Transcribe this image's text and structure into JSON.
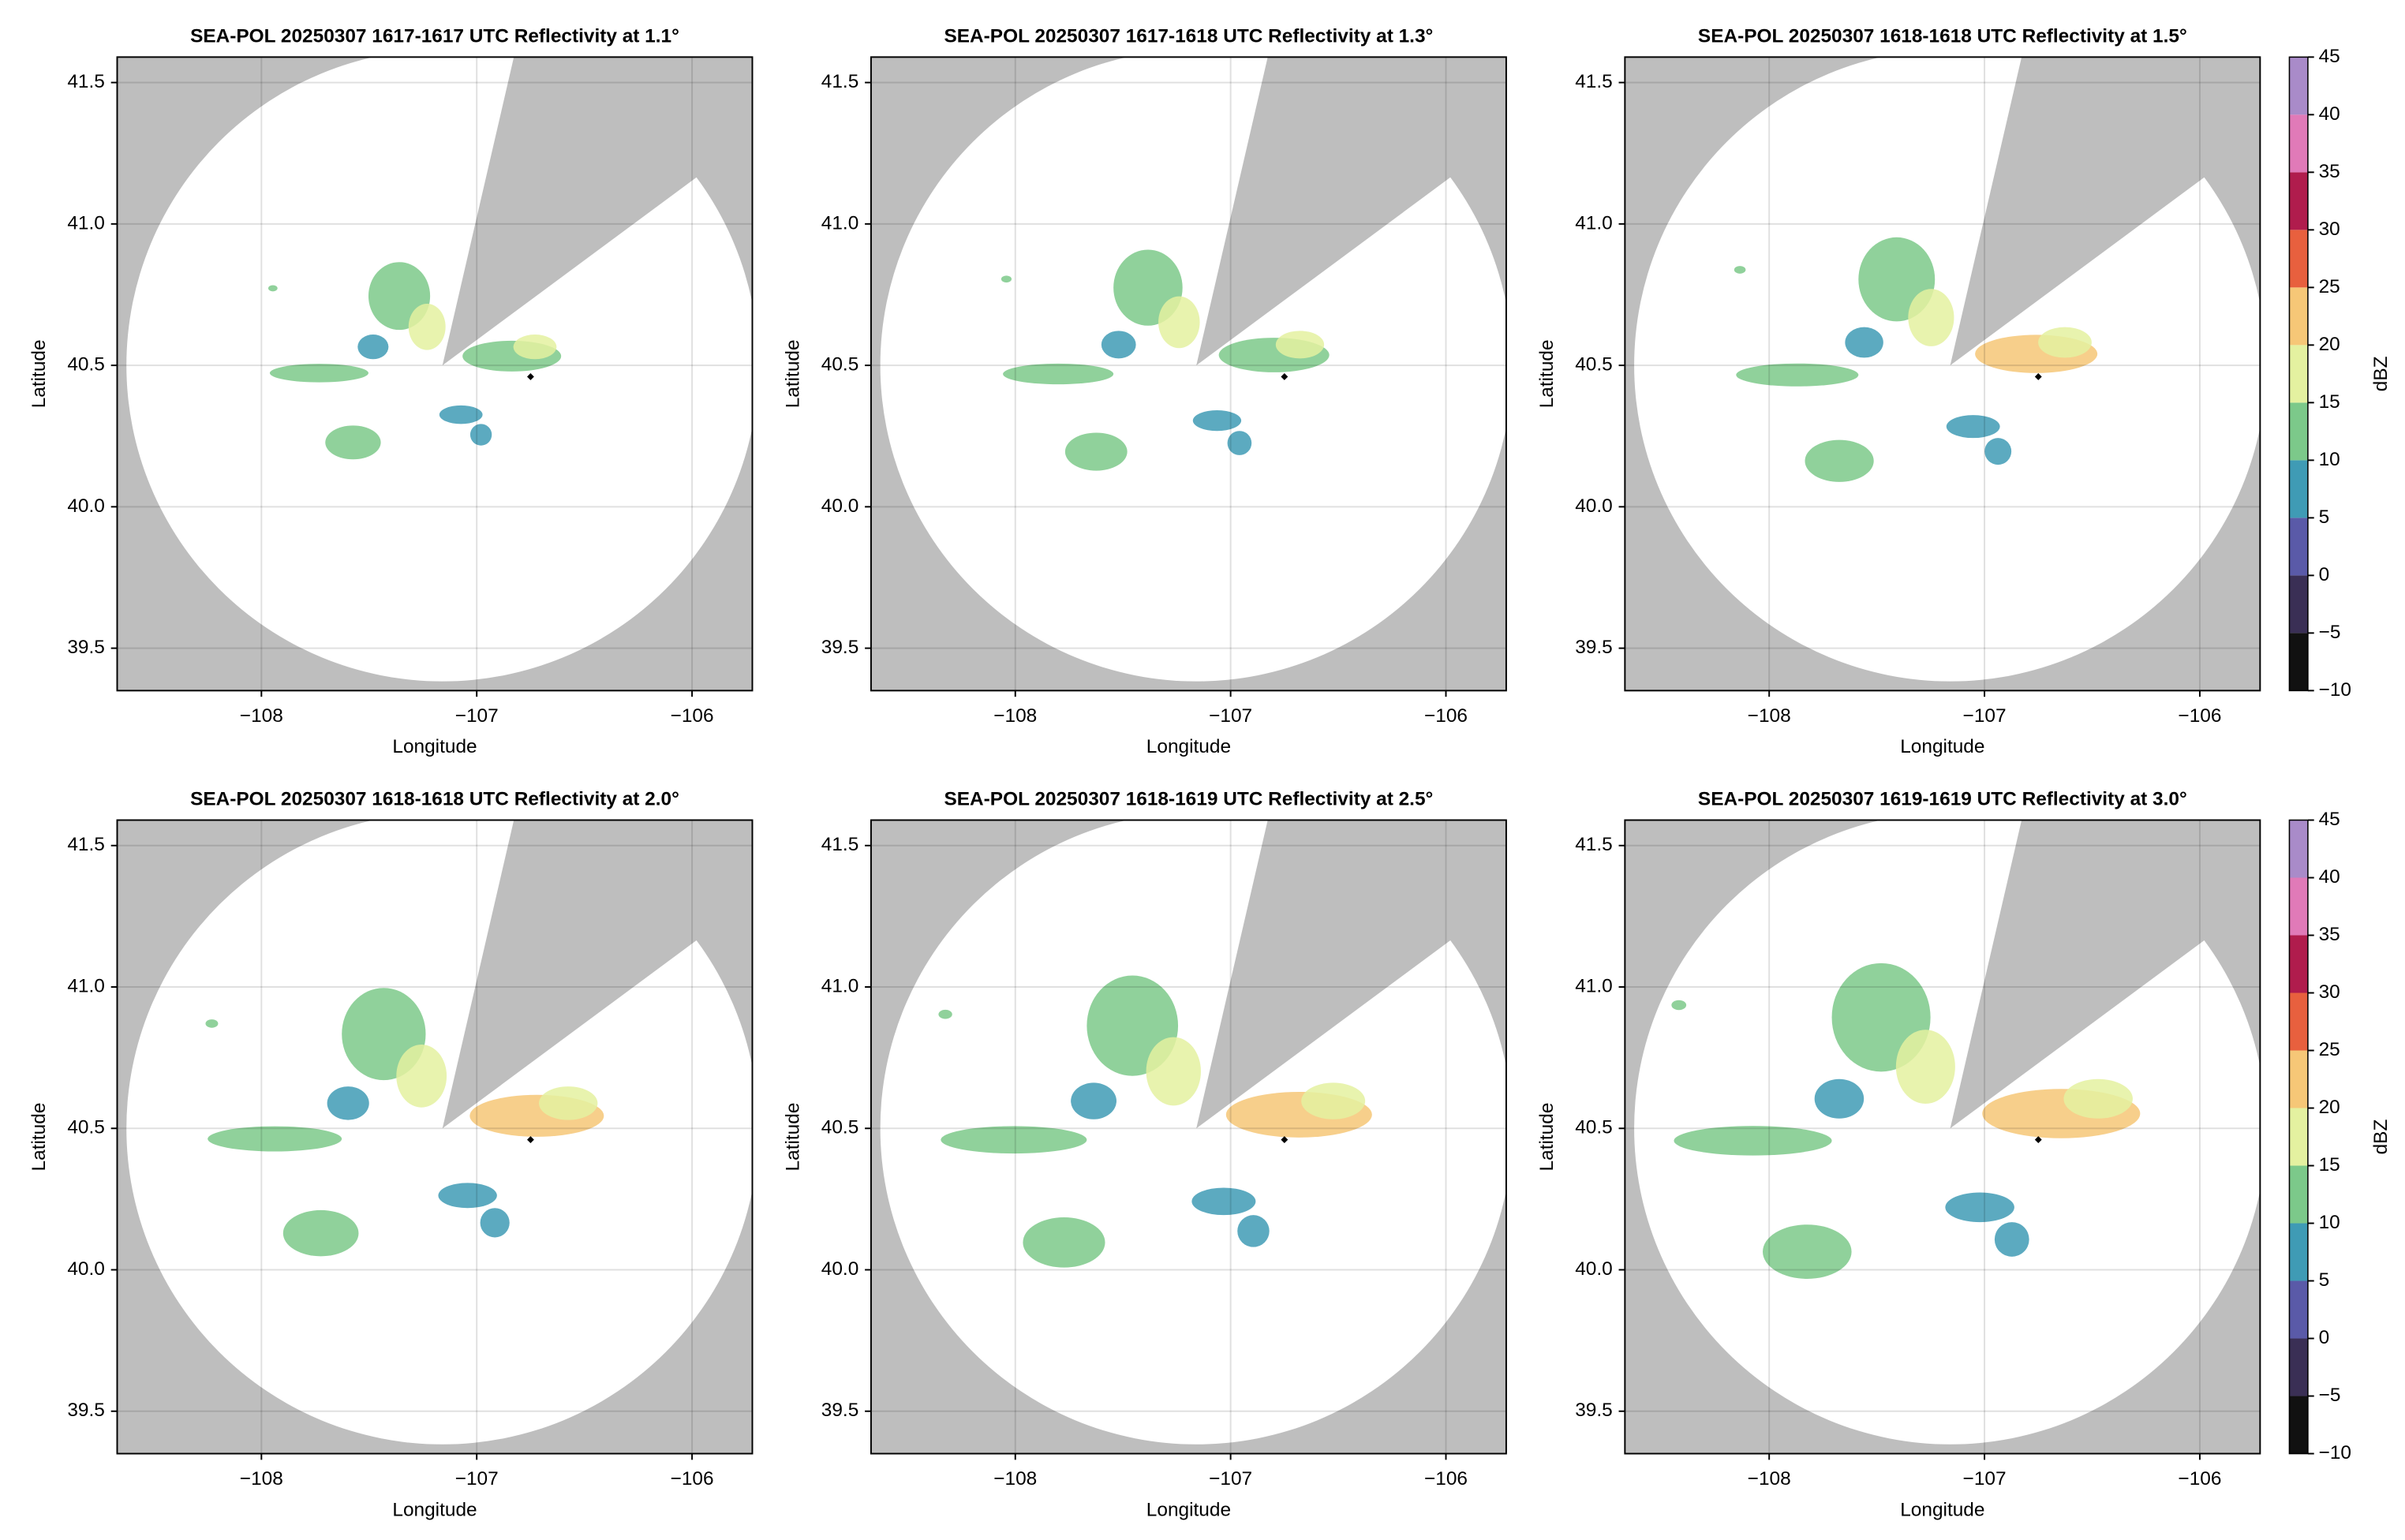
{
  "chart_data": [
    {
      "type": "map",
      "title": "SEA-POL 20250307 1617-1617 UTC Reflectivity at 1.1°",
      "xlabel": "Longitude",
      "ylabel": "Latitude",
      "xlim": [
        -108.67,
        -105.72
      ],
      "ylim": [
        39.35,
        41.59
      ],
      "xticks": [
        {
          "value": -108,
          "label": "−108"
        },
        {
          "value": -107,
          "label": "−107"
        },
        {
          "value": -106,
          "label": "−106"
        }
      ],
      "yticks": [
        39.5,
        {
          "value": 40,
          "label": "40.0"
        },
        40.5,
        {
          "value": 41,
          "label": "41.0"
        },
        41.5
      ],
      "grid": true,
      "station": {
        "x": [
          -106.75
        ],
        "y": [
          40.46
        ]
      }
    },
    {
      "type": "map",
      "title": "SEA-POL 20250307 1617-1618 UTC Reflectivity at 1.3°",
      "xlabel": "Longitude",
      "ylabel": "Latitude",
      "xlim": [
        -108.67,
        -105.72
      ],
      "ylim": [
        39.35,
        41.59
      ],
      "xticks": [
        {
          "value": -108,
          "label": "−108"
        },
        {
          "value": -107,
          "label": "−107"
        },
        {
          "value": -106,
          "label": "−106"
        }
      ],
      "yticks": [
        39.5,
        {
          "value": 40,
          "label": "40.0"
        },
        40.5,
        {
          "value": 41,
          "label": "41.0"
        },
        41.5
      ],
      "grid": true,
      "station": {
        "x": [
          -106.75
        ],
        "y": [
          40.46
        ]
      }
    },
    {
      "type": "map",
      "title": "SEA-POL 20250307 1618-1618 UTC Reflectivity at 1.5°",
      "xlabel": "Longitude",
      "ylabel": "Latitude",
      "xlim": [
        -108.67,
        -105.72
      ],
      "ylim": [
        39.35,
        41.59
      ],
      "xticks": [
        {
          "value": -108,
          "label": "−108"
        },
        {
          "value": -107,
          "label": "−107"
        },
        {
          "value": -106,
          "label": "−106"
        }
      ],
      "yticks": [
        39.5,
        {
          "value": 40,
          "label": "40.0"
        },
        40.5,
        {
          "value": 41,
          "label": "41.0"
        },
        41.5
      ],
      "grid": true,
      "station": {
        "x": [
          -106.75
        ],
        "y": [
          40.46
        ]
      },
      "colorbar": {
        "label": "dBZ",
        "lim": [
          -10,
          45
        ],
        "ticks": [
          {
            "value": -10,
            "label": "−10"
          },
          {
            "value": -5,
            "label": "−5"
          },
          0,
          5,
          10,
          15,
          20,
          25,
          30,
          35,
          40,
          45
        ],
        "colors": [
          "#111111",
          "#3a2f55",
          "#5a5aa8",
          "#3f9bb5",
          "#7cc98a",
          "#e4f1a0",
          "#f6c777",
          "#e8603e",
          "#b01c4d",
          "#e07ab8",
          "#a98bc9"
        ]
      }
    },
    {
      "type": "map",
      "title": "SEA-POL 20250307 1618-1618 UTC Reflectivity at 2.0°",
      "xlabel": "Longitude",
      "ylabel": "Latitude",
      "xlim": [
        -108.67,
        -105.72
      ],
      "ylim": [
        39.35,
        41.59
      ],
      "xticks": [
        {
          "value": -108,
          "label": "−108"
        },
        {
          "value": -107,
          "label": "−107"
        },
        {
          "value": -106,
          "label": "−106"
        }
      ],
      "yticks": [
        39.5,
        {
          "value": 40,
          "label": "40.0"
        },
        40.5,
        {
          "value": 41,
          "label": "41.0"
        },
        41.5
      ],
      "grid": true,
      "station": {
        "x": [
          -106.75
        ],
        "y": [
          40.46
        ]
      }
    },
    {
      "type": "map",
      "title": "SEA-POL 20250307 1618-1619 UTC Reflectivity at 2.5°",
      "xlabel": "Longitude",
      "ylabel": "Latitude",
      "xlim": [
        -108.67,
        -105.72
      ],
      "ylim": [
        39.35,
        41.59
      ],
      "xticks": [
        {
          "value": -108,
          "label": "−108"
        },
        {
          "value": -107,
          "label": "−107"
        },
        {
          "value": -106,
          "label": "−106"
        }
      ],
      "yticks": [
        39.5,
        {
          "value": 40,
          "label": "40.0"
        },
        40.5,
        {
          "value": 41,
          "label": "41.0"
        },
        41.5
      ],
      "grid": true,
      "station": {
        "x": [
          -106.75
        ],
        "y": [
          40.46
        ]
      }
    },
    {
      "type": "map",
      "title": "SEA-POL 20250307 1619-1619 UTC Reflectivity at 3.0°",
      "xlabel": "Longitude",
      "ylabel": "Latitude",
      "xlim": [
        -108.67,
        -105.72
      ],
      "ylim": [
        39.35,
        41.59
      ],
      "xticks": [
        {
          "value": -108,
          "label": "−108"
        },
        {
          "value": -107,
          "label": "−107"
        },
        {
          "value": -106,
          "label": "−106"
        }
      ],
      "yticks": [
        39.5,
        {
          "value": 40,
          "label": "40.0"
        },
        40.5,
        {
          "value": 41,
          "label": "41.0"
        },
        41.5
      ],
      "grid": true,
      "station": {
        "x": [
          -106.75
        ],
        "y": [
          40.46
        ]
      },
      "colorbar": {
        "label": "dBZ",
        "lim": [
          -10,
          45
        ],
        "ticks": [
          {
            "value": -10,
            "label": "−10"
          },
          {
            "value": -5,
            "label": "−5"
          },
          0,
          5,
          10,
          15,
          20,
          25,
          30,
          35,
          40,
          45
        ],
        "colors": [
          "#111111",
          "#3a2f55",
          "#5a5aa8",
          "#3f9bb5",
          "#7cc98a",
          "#e4f1a0",
          "#f6c777",
          "#e8603e",
          "#b01c4d",
          "#e07ab8",
          "#a98bc9"
        ]
      }
    }
  ]
}
